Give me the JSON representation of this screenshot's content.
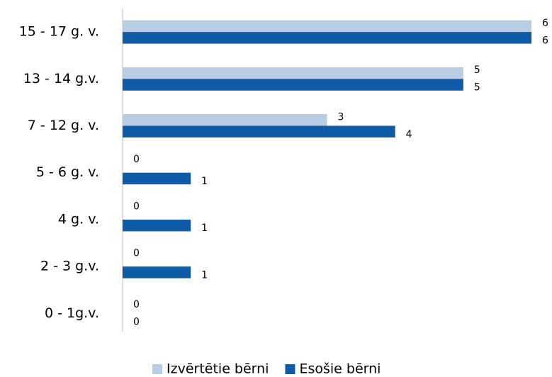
{
  "chart_data": {
    "type": "bar",
    "orientation": "horizontal",
    "categories": [
      "15 - 17 g. v.",
      "13 - 14 g.v.",
      "7 - 12 g. v.",
      "5 - 6 g. v.",
      "4 g. v.",
      "2 - 3 g.v.",
      "0 - 1g.v."
    ],
    "series": [
      {
        "name": "Izvērtētie bērni",
        "color": "#b9cde5",
        "values": [
          6,
          5,
          3,
          0,
          0,
          0,
          0
        ]
      },
      {
        "name": "Esošie bērni",
        "color": "#0f5ba7",
        "values": [
          6,
          5,
          4,
          1,
          1,
          1,
          0
        ]
      }
    ],
    "xlim": [
      0,
      6
    ],
    "legend": "bottom"
  }
}
